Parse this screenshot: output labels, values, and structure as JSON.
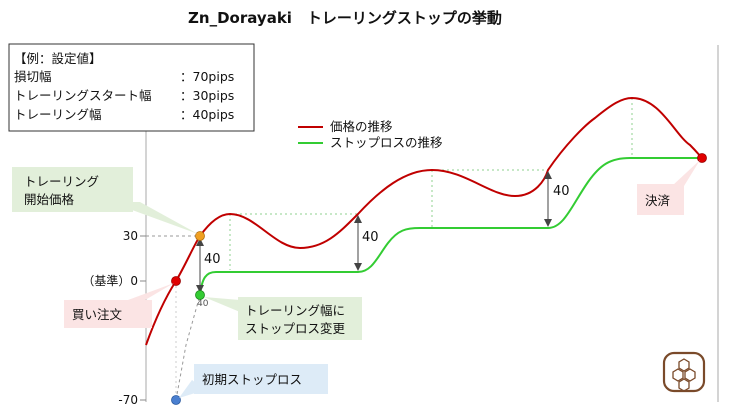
{
  "chart_data": {
    "type": "line",
    "title": "Zn_Dorayaki　トレーリングストップの挙動",
    "y_ticks": [
      {
        "value": 30,
        "label": "30"
      },
      {
        "value": 0,
        "label": "（基準）0"
      },
      {
        "value": -70,
        "label": "-70"
      }
    ],
    "settings": {
      "heading": "【例：設定値】",
      "rows": [
        {
          "name": "損切幅",
          "value": "：70pips"
        },
        {
          "name": "トレーリングスタート幅",
          "value": "：30pips"
        },
        {
          "name": "トレーリング幅",
          "value": "：40pips"
        }
      ]
    },
    "legend": [
      {
        "name": "価格の推移",
        "color": "#c00000"
      },
      {
        "name": "ストップロスの推移",
        "color": "#33cc33"
      }
    ],
    "gap_labels": [
      "40",
      "40",
      "40",
      "40"
    ],
    "callouts": {
      "trailing_start": [
        "トレーリング",
        "開始価格"
      ],
      "buy": "買い注文",
      "trailing_width": [
        "トレーリング幅に",
        "ストップロス変更"
      ],
      "initial_stop": "初期ストップロス",
      "settle": "決済"
    },
    "colors": {
      "price": "#c00000",
      "stop": "#33cc33",
      "entry_point": "#e00000",
      "trigger_point": "#f0a020",
      "initial_stop_point": "#4a7fd0",
      "callout_green": "#e2efda",
      "callout_pink": "#fbe4e4",
      "callout_blue": "#ddebf7"
    },
    "icon": "honeycomb-logo-icon"
  }
}
